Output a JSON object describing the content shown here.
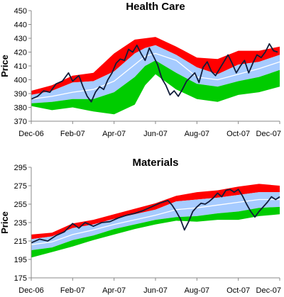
{
  "chart_data": [
    {
      "type": "area",
      "title": "Health Care",
      "xlabel": "",
      "ylabel": "Price",
      "ylim": [
        370,
        450
      ],
      "yticks": [
        370,
        380,
        390,
        400,
        410,
        420,
        430,
        440,
        450
      ],
      "xticks": [
        "Dec-06",
        "Feb-07",
        "Apr-07",
        "Jun-07",
        "Aug-07",
        "Oct-07",
        "Dec-07"
      ],
      "xlim": [
        0,
        12
      ],
      "grid": false,
      "band_colors": {
        "red": "#ff0000",
        "blue": "#a6cbff",
        "green": "#00cc00",
        "mid": "#ffffff",
        "price": "#111d3a"
      },
      "bands": {
        "x": [
          0,
          1,
          2,
          3,
          4,
          5,
          5.5,
          6,
          7,
          8,
          9,
          10,
          11,
          12
        ],
        "upper": [
          392,
          396,
          403,
          405,
          419,
          429,
          430,
          431,
          424,
          416,
          415,
          421,
          421,
          424
        ],
        "upper_mid": [
          389,
          392,
          398,
          399,
          406,
          419,
          423,
          425,
          418,
          409,
          404,
          411,
          413,
          418
        ],
        "middle": [
          386,
          388,
          391,
          393,
          399,
          411,
          417,
          419,
          414,
          402,
          400,
          404,
          408,
          413
        ],
        "lower_mid": [
          383,
          384,
          386,
          386,
          391,
          402,
          410,
          414,
          405,
          397,
          395,
          399,
          402,
          407
        ],
        "lower": [
          381,
          378,
          380,
          377,
          375,
          382,
          396,
          404,
          393,
          386,
          384,
          389,
          391,
          395
        ]
      },
      "series": [
        {
          "values": [
            [
              0,
              386
            ],
            [
              0.3,
              388
            ],
            [
              0.6,
              392
            ],
            [
              0.9,
              391
            ],
            [
              1.2,
              397
            ],
            [
              1.5,
              399
            ],
            [
              1.8,
              405
            ],
            [
              2.0,
              399
            ],
            [
              2.3,
              403
            ],
            [
              2.5,
              395
            ],
            [
              2.7,
              388
            ],
            [
              2.9,
              384
            ],
            [
              3.1,
              391
            ],
            [
              3.3,
              395
            ],
            [
              3.5,
              393
            ],
            [
              3.7,
              400
            ],
            [
              3.9,
              405
            ],
            [
              4.1,
              412
            ],
            [
              4.3,
              415
            ],
            [
              4.5,
              414
            ],
            [
              4.7,
              422
            ],
            [
              4.9,
              420
            ],
            [
              5.1,
              425
            ],
            [
              5.3,
              419
            ],
            [
              5.5,
              414
            ],
            [
              5.7,
              423
            ],
            [
              5.9,
              417
            ],
            [
              6.1,
              411
            ],
            [
              6.3,
              401
            ],
            [
              6.5,
              396
            ],
            [
              6.7,
              389
            ],
            [
              6.9,
              392
            ],
            [
              7.1,
              388
            ],
            [
              7.3,
              393
            ],
            [
              7.5,
              399
            ],
            [
              7.7,
              402
            ],
            [
              7.9,
              405
            ],
            [
              8.1,
              398
            ],
            [
              8.3,
              409
            ],
            [
              8.5,
              413
            ],
            [
              8.7,
              406
            ],
            [
              8.9,
              403
            ],
            [
              9.1,
              408
            ],
            [
              9.3,
              413
            ],
            [
              9.5,
              418
            ],
            [
              9.7,
              412
            ],
            [
              9.9,
              405
            ],
            [
              10.1,
              410
            ],
            [
              10.3,
              414
            ],
            [
              10.5,
              405
            ],
            [
              10.7,
              412
            ],
            [
              10.9,
              418
            ],
            [
              11.1,
              416
            ],
            [
              11.3,
              420
            ],
            [
              11.5,
              426
            ],
            [
              11.7,
              421
            ],
            [
              11.9,
              420
            ]
          ]
        }
      ]
    },
    {
      "type": "area",
      "title": "Materials",
      "xlabel": "",
      "ylabel": "Price",
      "ylim": [
        175,
        295
      ],
      "yticks": [
        175,
        195,
        215,
        235,
        255,
        275,
        295
      ],
      "xticks": [
        "Dec-06",
        "Feb-07",
        "Apr-07",
        "Jun-07",
        "Aug-07",
        "Oct-07",
        "Dec-07"
      ],
      "xlim": [
        0,
        12
      ],
      "grid": false,
      "band_colors": {
        "red": "#ff0000",
        "blue": "#a6cbff",
        "green": "#00cc00",
        "mid": "#ffffff",
        "price": "#111d3a"
      },
      "bands": {
        "x": [
          0,
          1,
          2,
          3,
          4,
          5,
          6,
          7,
          8,
          9,
          10,
          11,
          12
        ],
        "upper": [
          222,
          224,
          234,
          238,
          244,
          250,
          256,
          264,
          268,
          270,
          274,
          277,
          275
        ],
        "upper_mid": [
          217,
          220,
          229,
          233,
          239,
          244,
          249,
          258,
          260,
          262,
          265,
          268,
          268
        ],
        "middle": [
          211,
          214,
          222,
          227,
          233,
          238,
          243,
          249,
          251,
          254,
          257,
          260,
          260
        ],
        "lower_mid": [
          205,
          208,
          216,
          221,
          228,
          233,
          238,
          241,
          242,
          245,
          247,
          251,
          252
        ],
        "lower": [
          197,
          203,
          209,
          216,
          222,
          228,
          233,
          237,
          236,
          238,
          238,
          242,
          244
        ]
      },
      "series": [
        {
          "values": [
            [
              0,
              213
            ],
            [
              0.4,
              217
            ],
            [
              0.8,
              215
            ],
            [
              1.2,
              221
            ],
            [
              1.6,
              225
            ],
            [
              2.0,
              234
            ],
            [
              2.3,
              229
            ],
            [
              2.6,
              235
            ],
            [
              3.0,
              231
            ],
            [
              3.4,
              235
            ],
            [
              3.8,
              236
            ],
            [
              4.2,
              240
            ],
            [
              4.6,
              243
            ],
            [
              5.0,
              245
            ],
            [
              5.4,
              248
            ],
            [
              5.8,
              252
            ],
            [
              6.2,
              256
            ],
            [
              6.6,
              259
            ],
            [
              6.8,
              254
            ],
            [
              7.0,
              247
            ],
            [
              7.2,
              239
            ],
            [
              7.4,
              227
            ],
            [
              7.6,
              236
            ],
            [
              7.8,
              247
            ],
            [
              8.0,
              252
            ],
            [
              8.2,
              256
            ],
            [
              8.4,
              255
            ],
            [
              8.6,
              258
            ],
            [
              8.8,
              262
            ],
            [
              9.0,
              267
            ],
            [
              9.2,
              263
            ],
            [
              9.4,
              270
            ],
            [
              9.6,
              271
            ],
            [
              9.8,
              268
            ],
            [
              10.0,
              271
            ],
            [
              10.2,
              264
            ],
            [
              10.4,
              255
            ],
            [
              10.6,
              247
            ],
            [
              10.8,
              241
            ],
            [
              11.0,
              247
            ],
            [
              11.2,
              252
            ],
            [
              11.4,
              257
            ],
            [
              11.6,
              263
            ],
            [
              11.8,
              260
            ],
            [
              12.0,
              263
            ]
          ]
        }
      ]
    }
  ]
}
